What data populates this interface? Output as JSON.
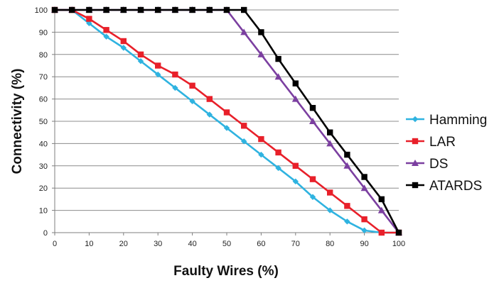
{
  "chart_data": {
    "type": "line",
    "title": "",
    "xlabel": "Faulty Wires (%)",
    "ylabel": "Connectivity (%)",
    "xlim": [
      0,
      100
    ],
    "ylim": [
      0,
      100
    ],
    "xticks": [
      0,
      10,
      20,
      30,
      40,
      50,
      60,
      70,
      80,
      90,
      100
    ],
    "yticks": [
      0,
      10,
      20,
      30,
      40,
      50,
      60,
      70,
      80,
      90,
      100
    ],
    "grid": "horizontal",
    "legend_position": "right",
    "x": [
      0,
      5,
      10,
      15,
      20,
      25,
      30,
      35,
      40,
      45,
      50,
      55,
      60,
      65,
      70,
      75,
      80,
      85,
      90,
      95,
      100
    ],
    "series": [
      {
        "name": "Hamming",
        "color": "#2fb3e0",
        "marker": "diamond",
        "x": [
          0,
          5,
          10,
          15,
          20,
          25,
          30,
          35,
          40,
          45,
          50,
          55,
          60,
          65,
          70,
          75,
          80,
          85,
          90,
          95,
          100
        ],
        "values": [
          100,
          100,
          94,
          88,
          83,
          77,
          71,
          65,
          59,
          53,
          47,
          41,
          35,
          29,
          23,
          16,
          10,
          5,
          1,
          0,
          0
        ]
      },
      {
        "name": "LAR",
        "color": "#e8202a",
        "marker": "square",
        "x": [
          0,
          5,
          10,
          15,
          20,
          25,
          30,
          35,
          40,
          45,
          50,
          55,
          60,
          65,
          70,
          75,
          80,
          85,
          90,
          95,
          100
        ],
        "values": [
          100,
          100,
          96,
          91,
          86,
          80,
          75,
          71,
          66,
          60,
          54,
          48,
          42,
          36,
          30,
          24,
          18,
          12,
          6,
          0,
          0
        ]
      },
      {
        "name": "DS",
        "color": "#7b3fa0",
        "marker": "triangle",
        "x": [
          0,
          5,
          10,
          15,
          20,
          25,
          30,
          35,
          40,
          45,
          50,
          55,
          60,
          65,
          70,
          75,
          80,
          85,
          90,
          95,
          100
        ],
        "values": [
          100,
          100,
          100,
          100,
          100,
          100,
          100,
          100,
          100,
          100,
          100,
          90,
          80,
          70,
          60,
          50,
          40,
          30,
          20,
          10,
          0
        ]
      },
      {
        "name": "ATARDS",
        "color": "#000000",
        "marker": "square",
        "x": [
          0,
          5,
          10,
          15,
          20,
          25,
          30,
          35,
          40,
          45,
          50,
          55,
          60,
          65,
          70,
          75,
          80,
          85,
          90,
          95,
          100
        ],
        "values": [
          100,
          100,
          100,
          100,
          100,
          100,
          100,
          100,
          100,
          100,
          100,
          100,
          90,
          78,
          67,
          56,
          45,
          35,
          25,
          15,
          0
        ]
      }
    ]
  }
}
